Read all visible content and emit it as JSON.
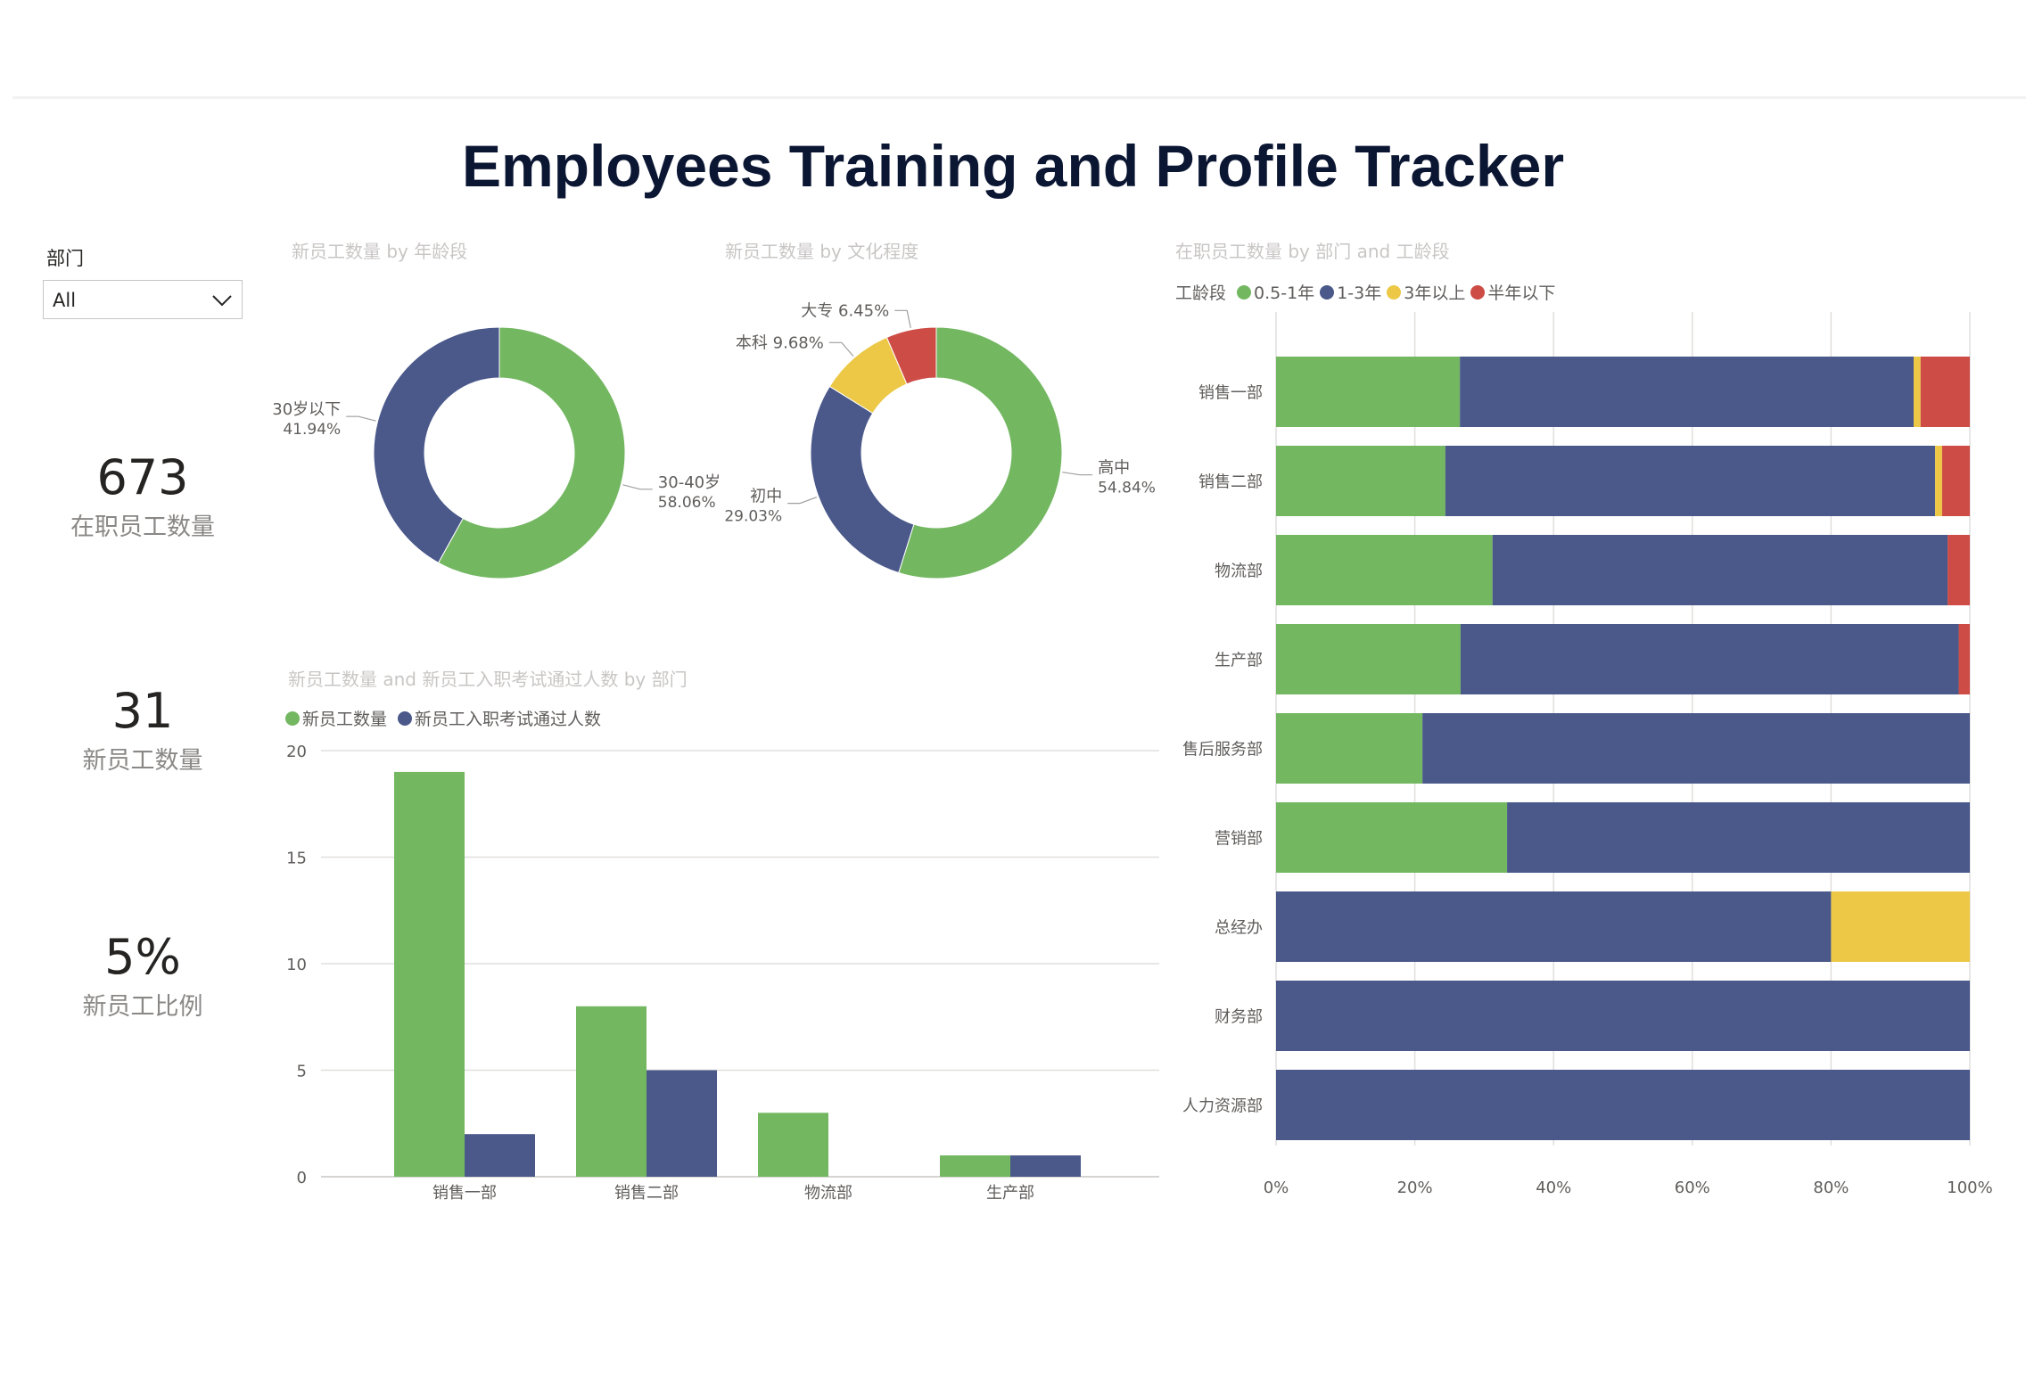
{
  "title": "Employees Training and Profile Tracker",
  "filter": {
    "label": "部门",
    "value": "All"
  },
  "kpis": [
    {
      "value": "673",
      "label": "在职员工数量"
    },
    {
      "value": "31",
      "label": "新员工数量"
    },
    {
      "value": "5%",
      "label": "新员工比例"
    }
  ],
  "colors": {
    "green": "#73b761",
    "blue": "#4a588a",
    "yellow": "#ecc846",
    "red": "#cd4c46"
  },
  "chart_data": [
    {
      "type": "pie",
      "title": "新员工数量 by 年龄段",
      "slices": [
        {
          "name": "30-40岁",
          "value": 58.06,
          "label": "58.06%",
          "color": "#73b761"
        },
        {
          "name": "30岁以下",
          "value": 41.94,
          "label": "41.94%",
          "color": "#4a588a"
        }
      ]
    },
    {
      "type": "pie",
      "title": "新员工数量 by 文化程度",
      "slices": [
        {
          "name": "高中",
          "value": 54.84,
          "label": "54.84%",
          "color": "#73b761"
        },
        {
          "name": "初中",
          "value": 29.03,
          "label": "29.03%",
          "color": "#4a588a"
        },
        {
          "name": "本科",
          "value": 9.68,
          "label": "9.68%",
          "color": "#ecc846"
        },
        {
          "name": "大专",
          "value": 6.45,
          "label": "6.45%",
          "color": "#cd4c46"
        }
      ]
    },
    {
      "type": "bar",
      "title": "新员工数量 and 新员工入职考试通过人数 by 部门",
      "categories": [
        "销售一部",
        "销售二部",
        "物流部",
        "生产部"
      ],
      "series": [
        {
          "name": "新员工数量",
          "values": [
            19,
            8,
            3,
            1
          ],
          "color": "#73b761"
        },
        {
          "name": "新员工入职考试通过人数",
          "values": [
            2,
            5,
            0,
            1
          ],
          "color": "#4a588a"
        }
      ],
      "yticks": [
        "0",
        "5",
        "10",
        "15",
        "20"
      ],
      "ylim": [
        0,
        20
      ],
      "grid": true,
      "legend": "top-left"
    },
    {
      "type": "bar",
      "orientation": "horizontal-100%-stacked",
      "title": "在职员工数量 by 部门 and 工龄段",
      "legend_title": "工龄段",
      "categories": [
        "销售一部",
        "销售二部",
        "物流部",
        "生产部",
        "售后服务部",
        "营销部",
        "总经办",
        "财务部",
        "人力资源部"
      ],
      "series": [
        {
          "name": "0.5-1年",
          "values": [
            26.5,
            24.4,
            31.2,
            26.6,
            21.1,
            33.3,
            0,
            0,
            0
          ],
          "color": "#73b761"
        },
        {
          "name": "1-3年",
          "values": [
            65.4,
            70.6,
            65.6,
            71.8,
            78.9,
            66.7,
            80,
            100,
            100
          ],
          "color": "#4a588a"
        },
        {
          "name": "3年以上",
          "values": [
            1.0,
            1.0,
            0,
            0,
            0,
            0,
            20,
            0,
            0
          ],
          "color": "#ecc846"
        },
        {
          "name": "半年以下",
          "values": [
            7.1,
            4.0,
            3.2,
            1.6,
            0,
            0,
            0,
            0,
            0
          ],
          "color": "#cd4c46"
        }
      ],
      "xticks": [
        "0%",
        "20%",
        "40%",
        "60%",
        "80%",
        "100%"
      ],
      "xlim": [
        0,
        100
      ],
      "grid": true,
      "legend": "top-left"
    }
  ]
}
